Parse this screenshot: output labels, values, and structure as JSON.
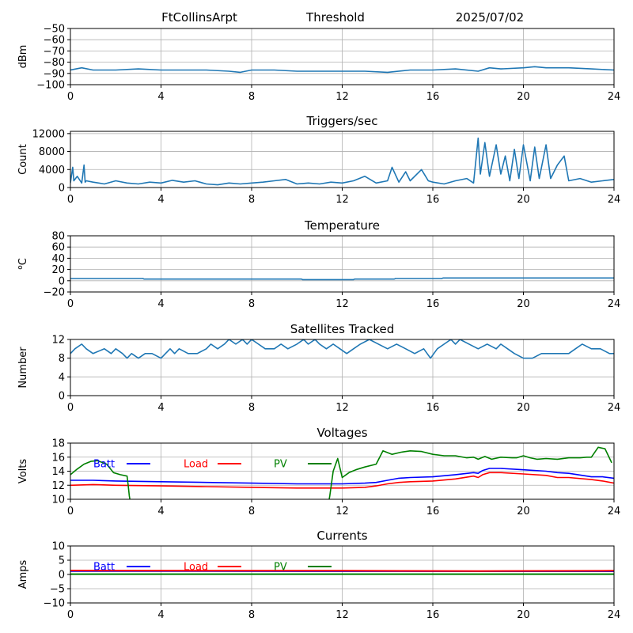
{
  "header": {
    "station": "FtCollinsArpt",
    "mode": "Threshold",
    "date": "2025/07/02"
  },
  "chart_data": [
    {
      "type": "line",
      "key": "signal",
      "title": "",
      "ylabel": "dBm",
      "xlim": [
        0,
        24
      ],
      "ylim": [
        -100,
        -50
      ],
      "xticks": [
        0,
        4,
        8,
        12,
        16,
        20,
        24
      ],
      "yticks": [
        -100,
        -90,
        -80,
        -70,
        -60,
        -50
      ],
      "grid": true,
      "series": [
        {
          "color": "#1f77b4",
          "x": [
            0,
            0.5,
            1,
            2,
            3,
            4,
            5,
            6,
            7,
            7.5,
            8,
            9,
            10,
            11,
            12,
            13,
            14,
            15,
            16,
            17,
            18,
            18.5,
            19,
            20,
            20.5,
            21,
            22,
            23,
            24
          ],
          "y": [
            -87,
            -85,
            -87,
            -87,
            -86,
            -87,
            -87,
            -87,
            -88,
            -89,
            -87,
            -87,
            -88,
            -88,
            -88,
            -88,
            -89,
            -87,
            -87,
            -86,
            -88,
            -85,
            -86,
            -85,
            -84,
            -85,
            -85,
            -86,
            -87
          ]
        }
      ]
    },
    {
      "type": "line",
      "key": "triggers",
      "title": "Triggers/sec",
      "ylabel": "Count",
      "xlim": [
        0,
        24
      ],
      "ylim": [
        0,
        12500
      ],
      "xticks": [
        0,
        4,
        8,
        12,
        16,
        20,
        24
      ],
      "yticks": [
        0,
        4000,
        8000,
        12000
      ],
      "grid": true,
      "series": [
        {
          "color": "#1f77b4",
          "x": [
            0,
            0.1,
            0.15,
            0.3,
            0.5,
            0.6,
            0.65,
            0.7,
            1,
            1.5,
            2,
            2.5,
            3,
            3.5,
            4,
            4.5,
            5,
            5.5,
            6,
            6.5,
            7,
            7.5,
            8,
            8.5,
            9,
            9.5,
            10,
            10.5,
            11,
            11.5,
            12,
            12.5,
            13,
            13.5,
            14,
            14.2,
            14.5,
            14.8,
            15,
            15.5,
            15.8,
            16,
            16.5,
            17,
            17.5,
            17.8,
            18,
            18.1,
            18.3,
            18.5,
            18.8,
            19,
            19.2,
            19.4,
            19.6,
            19.8,
            20,
            20.3,
            20.5,
            20.7,
            21,
            21.2,
            21.5,
            21.8,
            22,
            22.5,
            23,
            23.5,
            24
          ],
          "y": [
            1000,
            4500,
            1500,
            2500,
            1000,
            5000,
            1200,
            1500,
            1200,
            800,
            1500,
            1000,
            800,
            1200,
            1000,
            1600,
            1200,
            1500,
            800,
            600,
            1000,
            800,
            1000,
            1200,
            1500,
            1800,
            800,
            1000,
            800,
            1200,
            1000,
            1500,
            2500,
            1000,
            1500,
            4500,
            1200,
            3500,
            1500,
            4000,
            1500,
            1200,
            800,
            1500,
            2000,
            1000,
            11000,
            3000,
            10000,
            2500,
            9500,
            3000,
            7000,
            1500,
            8500,
            2000,
            9500,
            1500,
            9000,
            2000,
            9500,
            2000,
            5000,
            7000,
            1500,
            2000,
            1200,
            1500,
            1800
          ]
        }
      ]
    },
    {
      "type": "line",
      "key": "temperature",
      "title": "Temperature",
      "ylabel": "oC",
      "xlim": [
        0,
        24
      ],
      "ylim": [
        -20,
        80
      ],
      "xticks": [
        0,
        4,
        8,
        12,
        16,
        20,
        24
      ],
      "yticks": [
        -20,
        0,
        20,
        40,
        60,
        80
      ],
      "grid": true,
      "series": [
        {
          "color": "#1f77b4",
          "x": [
            0,
            3.2,
            3.25,
            10.2,
            10.25,
            12.5,
            12.55,
            14.3,
            14.35,
            16.4,
            16.45,
            24
          ],
          "y": [
            4,
            4,
            3,
            3,
            2,
            2,
            3,
            3,
            4,
            4,
            5,
            5
          ]
        }
      ]
    },
    {
      "type": "line",
      "key": "satellites",
      "title": "Satellites Tracked",
      "ylabel": "Number",
      "xlim": [
        0,
        24
      ],
      "ylim": [
        0,
        12
      ],
      "xticks": [
        0,
        4,
        8,
        12,
        16,
        20,
        24
      ],
      "yticks": [
        0,
        4,
        8,
        12
      ],
      "grid": true,
      "series": [
        {
          "color": "#1f77b4",
          "x": [
            0,
            0.2,
            0.5,
            0.7,
            1,
            1.5,
            1.8,
            2,
            2.3,
            2.5,
            2.7,
            3,
            3.3,
            3.6,
            4,
            4.4,
            4.6,
            4.8,
            5.2,
            5.6,
            6,
            6.2,
            6.5,
            6.8,
            7,
            7.3,
            7.6,
            7.8,
            8,
            8.3,
            8.6,
            9,
            9.3,
            9.6,
            10,
            10.3,
            10.5,
            10.8,
            11,
            11.3,
            11.6,
            11.9,
            12.2,
            12.5,
            12.8,
            13.2,
            13.6,
            14,
            14.4,
            14.8,
            15.2,
            15.6,
            15.9,
            16.2,
            16.5,
            16.8,
            17,
            17.2,
            17.6,
            18,
            18.4,
            18.8,
            19,
            19.3,
            19.6,
            20,
            20.4,
            20.8,
            21.2,
            21.6,
            22,
            22.3,
            22.6,
            23,
            23.4,
            23.8,
            24
          ],
          "y": [
            9,
            10,
            11,
            10,
            9,
            10,
            9,
            10,
            9,
            8,
            9,
            8,
            9,
            9,
            8,
            10,
            9,
            10,
            9,
            9,
            10,
            11,
            10,
            11,
            12,
            11,
            12,
            11,
            12,
            11,
            10,
            10,
            11,
            10,
            11,
            12,
            11,
            12,
            11,
            10,
            11,
            10,
            9,
            10,
            11,
            12,
            11,
            10,
            11,
            10,
            9,
            10,
            8,
            10,
            11,
            12,
            11,
            12,
            11,
            10,
            11,
            10,
            11,
            10,
            9,
            8,
            8,
            9,
            9,
            9,
            9,
            10,
            11,
            10,
            10,
            9,
            9
          ]
        }
      ]
    },
    {
      "type": "line",
      "key": "voltages",
      "title": "Voltages",
      "ylabel": "Volts",
      "xlim": [
        0,
        24
      ],
      "ylim": [
        10,
        18
      ],
      "xticks": [
        0,
        4,
        8,
        12,
        16,
        20,
        24
      ],
      "yticks": [
        10,
        12,
        14,
        16,
        18
      ],
      "grid": true,
      "legend": "inline-top",
      "series": [
        {
          "name": "Batt",
          "color": "#0000ff",
          "x": [
            0,
            1,
            2,
            4,
            6,
            8,
            10,
            12,
            13,
            13.5,
            14,
            14.5,
            15,
            16,
            17,
            17.8,
            18,
            18.2,
            18.5,
            19,
            20,
            21,
            21.5,
            22,
            23,
            23.5,
            24
          ],
          "y": [
            12.7,
            12.7,
            12.6,
            12.5,
            12.4,
            12.3,
            12.2,
            12.2,
            12.3,
            12.4,
            12.7,
            13.0,
            13.1,
            13.2,
            13.5,
            13.8,
            13.7,
            14.1,
            14.4,
            14.4,
            14.2,
            14.0,
            13.8,
            13.7,
            13.2,
            13.2,
            13.0
          ]
        },
        {
          "name": "Load",
          "color": "#ff0000",
          "x": [
            0,
            1,
            2,
            4,
            6,
            8,
            10,
            12,
            13,
            13.5,
            14,
            14.5,
            15,
            16,
            17,
            17.8,
            18,
            18.2,
            18.5,
            19,
            20,
            21,
            21.5,
            22,
            23,
            23.5,
            24
          ],
          "y": [
            12.0,
            12.1,
            12.0,
            11.9,
            11.8,
            11.7,
            11.6,
            11.6,
            11.7,
            11.9,
            12.2,
            12.4,
            12.5,
            12.6,
            12.9,
            13.3,
            13.1,
            13.5,
            13.8,
            13.8,
            13.6,
            13.4,
            13.1,
            13.1,
            12.8,
            12.6,
            12.3
          ]
        },
        {
          "name": "PV",
          "color": "#008000",
          "x": [
            0,
            0.3,
            0.6,
            0.9,
            1.2,
            1.6,
            1.9,
            2.2,
            2.5,
            2.55,
            2.6,
            2.65,
            11.4,
            11.45,
            11.6,
            11.8,
            12.0,
            12.3,
            12.6,
            13.0,
            13.5,
            13.8,
            14.2,
            14.6,
            15.0,
            15.5,
            16.0,
            16.5,
            17.0,
            17.5,
            17.8,
            18.0,
            18.3,
            18.6,
            19.0,
            19.5,
            19.7,
            20.0,
            20.3,
            20.6,
            21.0,
            21.5,
            22.0,
            22.5,
            22.8,
            23.0,
            23.3,
            23.6,
            23.9
          ],
          "y": [
            13.5,
            14.3,
            15.0,
            15.4,
            15.5,
            15.0,
            13.8,
            13.5,
            13.3,
            12.0,
            10.5,
            9.5,
            9.5,
            10.5,
            14.0,
            15.8,
            13.1,
            13.8,
            14.2,
            14.6,
            15.0,
            16.9,
            16.4,
            16.7,
            16.9,
            16.8,
            16.4,
            16.2,
            16.2,
            15.9,
            16.0,
            15.7,
            16.1,
            15.7,
            16.0,
            15.9,
            15.9,
            16.2,
            15.9,
            15.7,
            15.8,
            15.7,
            15.9,
            15.9,
            16.0,
            16.0,
            17.4,
            17.2,
            15.2
          ]
        }
      ]
    },
    {
      "type": "line",
      "key": "currents",
      "title": "Currents",
      "ylabel": "Amps",
      "xlim": [
        0,
        24
      ],
      "ylim": [
        -10,
        10
      ],
      "xticks": [
        0,
        4,
        8,
        12,
        16,
        20,
        24
      ],
      "yticks": [
        -10,
        -5,
        0,
        5,
        10
      ],
      "grid": true,
      "legend": "inline-top",
      "series": [
        {
          "name": "Batt",
          "color": "#0000ff",
          "x": [
            0,
            24
          ],
          "y": [
            1.2,
            1.1
          ]
        },
        {
          "name": "Load",
          "color": "#ff0000",
          "x": [
            0,
            6,
            12,
            18,
            24
          ],
          "y": [
            1.4,
            1.3,
            1.3,
            1.2,
            1.3
          ]
        },
        {
          "name": "PV",
          "color": "#008000",
          "x": [
            0,
            24
          ],
          "y": [
            0.1,
            0.1
          ]
        }
      ]
    }
  ]
}
